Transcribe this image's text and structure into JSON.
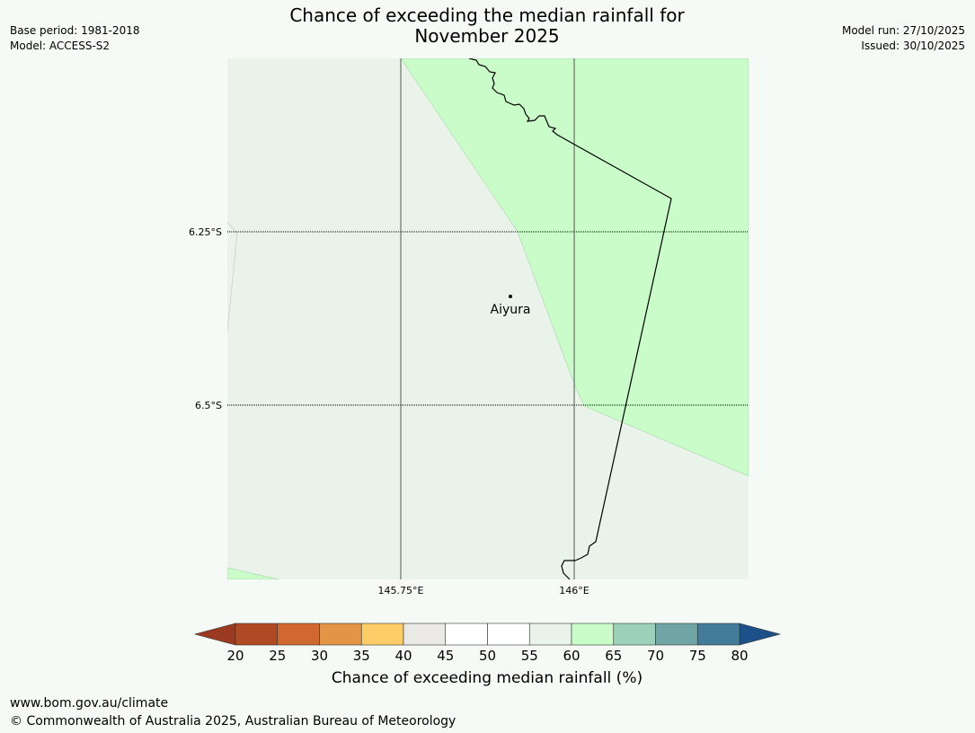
{
  "header": {
    "title_line1": "Chance of exceeding the median rainfall for",
    "title_line2": "November 2025",
    "base_period": "Base period: 1981-2018",
    "model": "Model: ACCESS-S2",
    "model_run": "Model run: 27/10/2025",
    "issued": "Issued: 30/10/2025"
  },
  "map": {
    "lat_labels": [
      "6.25°S",
      "6.5°S"
    ],
    "lon_labels": [
      "145.75°E",
      "146°E"
    ],
    "place": {
      "name": "Aiyura"
    },
    "colors": {
      "region_55_60": "#e9f3e9",
      "region_60_65": "#c9fcc9",
      "border": "#000000",
      "gridline": "#555555"
    }
  },
  "colorbar": {
    "ticks": [
      "20",
      "25",
      "30",
      "35",
      "40",
      "45",
      "50",
      "55",
      "60",
      "65",
      "70",
      "75",
      "80"
    ],
    "below_color": "#9a3a22",
    "above_color": "#1b5088",
    "bin_colors": [
      "#b04a24",
      "#d0682f",
      "#e39546",
      "#ffcd68",
      "#ebe9e5",
      "#ffffff",
      "#ffffff",
      "#e9f3e9",
      "#c9fcc9",
      "#9bd1b8",
      "#70a5a5",
      "#437b9a"
    ],
    "label": "Chance of exceeding median rainfall (%)"
  },
  "footer": {
    "url": "www.bom.gov.au/climate",
    "copyright": "© Commonwealth of Australia 2025, Australian Bureau of Meteorology"
  }
}
